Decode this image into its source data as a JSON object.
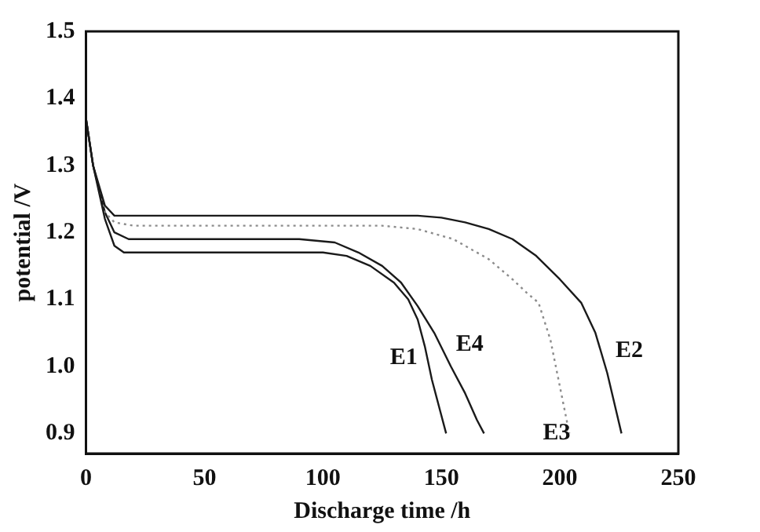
{
  "chart_data": {
    "type": "line",
    "xlabel": "Discharge time /h",
    "ylabel": "potential /V",
    "xlim": [
      0,
      250
    ],
    "xticks": [
      0,
      50,
      100,
      150,
      200,
      250
    ],
    "ylim": [
      0.87,
      1.5
    ],
    "yticks": [
      0.9,
      {
        "value": 1.0,
        "label": "1.0"
      },
      1.1,
      1.2,
      1.3,
      1.4,
      1.5
    ],
    "grid": false,
    "legend": false,
    "marker": "none",
    "series": [
      {
        "name": "E1",
        "color": "#1a1a1a",
        "line_style": "solid",
        "x": [
          0,
          3,
          8,
          12,
          16,
          20,
          40,
          70,
          100,
          110,
          120,
          130,
          136,
          140,
          143,
          146,
          149,
          152
        ],
        "values": [
          1.37,
          1.3,
          1.22,
          1.18,
          1.17,
          1.17,
          1.17,
          1.17,
          1.17,
          1.165,
          1.15,
          1.125,
          1.1,
          1.07,
          1.03,
          0.98,
          0.94,
          0.9
        ]
      },
      {
        "name": "E2",
        "color": "#1a1a1a",
        "line_style": "solid",
        "x": [
          0,
          3,
          8,
          12,
          20,
          50,
          100,
          140,
          150,
          160,
          170,
          180,
          190,
          200,
          209,
          215,
          220,
          224,
          226
        ],
        "values": [
          1.37,
          1.3,
          1.24,
          1.225,
          1.225,
          1.225,
          1.225,
          1.225,
          1.222,
          1.215,
          1.205,
          1.19,
          1.165,
          1.13,
          1.095,
          1.05,
          0.99,
          0.93,
          0.9
        ]
      },
      {
        "name": "E3",
        "color": "#8c8c8c",
        "line_style": "dotted",
        "x": [
          0,
          3,
          8,
          12,
          20,
          50,
          100,
          125,
          140,
          155,
          170,
          180,
          186,
          191,
          196,
          200,
          204
        ],
        "values": [
          1.37,
          1.3,
          1.23,
          1.215,
          1.21,
          1.21,
          1.21,
          1.21,
          1.205,
          1.19,
          1.16,
          1.13,
          1.11,
          1.095,
          1.04,
          0.97,
          0.9
        ]
      },
      {
        "name": "E4",
        "color": "#1a1a1a",
        "line_style": "solid",
        "x": [
          0,
          3,
          8,
          12,
          18,
          25,
          50,
          90,
          105,
          115,
          125,
          133,
          140,
          147,
          154,
          160,
          165,
          168
        ],
        "values": [
          1.37,
          1.3,
          1.23,
          1.2,
          1.19,
          1.19,
          1.19,
          1.19,
          1.185,
          1.17,
          1.15,
          1.125,
          1.09,
          1.05,
          1.0,
          0.96,
          0.92,
          0.9
        ]
      }
    ]
  }
}
